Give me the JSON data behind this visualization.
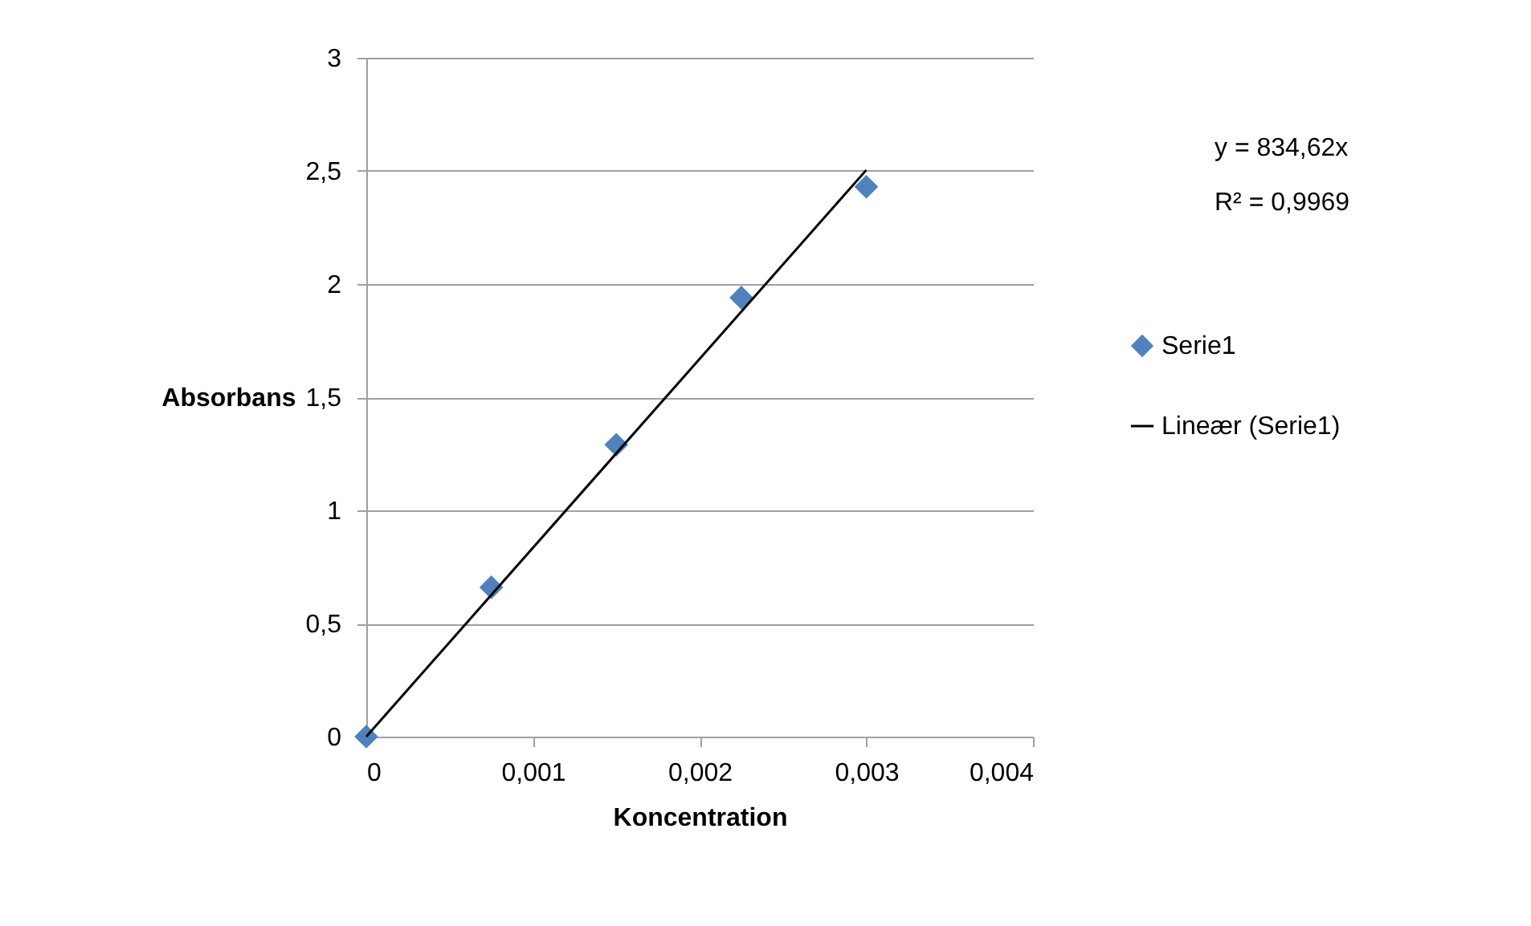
{
  "chart_data": {
    "type": "scatter",
    "xlabel": "Koncentration",
    "ylabel": "Absorbans",
    "xlim": [
      0,
      0.004
    ],
    "ylim": [
      0,
      3
    ],
    "xticks": [
      0,
      {
        "value": 0.001,
        "label": "0,001"
      },
      {
        "value": 0.002,
        "label": "0,002"
      },
      {
        "value": 0.003,
        "label": "0,003"
      },
      {
        "value": 0.004,
        "label": "0,004"
      }
    ],
    "yticks": [
      0,
      {
        "value": 0.5,
        "label": "0,5"
      },
      1,
      {
        "value": 1.5,
        "label": "1,5"
      },
      2,
      {
        "value": 2.5,
        "label": "2,5"
      },
      3
    ],
    "grid": "y",
    "legend": "right",
    "series": [
      {
        "name": "Serie1",
        "marker": "diamond",
        "color": "#4f81bd",
        "x": [
          0,
          0.00075,
          0.0015,
          0.00225,
          0.003
        ],
        "values": [
          0,
          0.66,
          1.29,
          1.94,
          2.43
        ]
      },
      {
        "name": "Lineær (Serie1)",
        "type": "line",
        "marker": "none",
        "line_style": "solid",
        "color": "#000000",
        "x": [
          0,
          0.003
        ],
        "values": [
          0,
          2.504
        ]
      }
    ],
    "annotations": [
      "y = 834,62x",
      "R² = 0,9969"
    ]
  }
}
